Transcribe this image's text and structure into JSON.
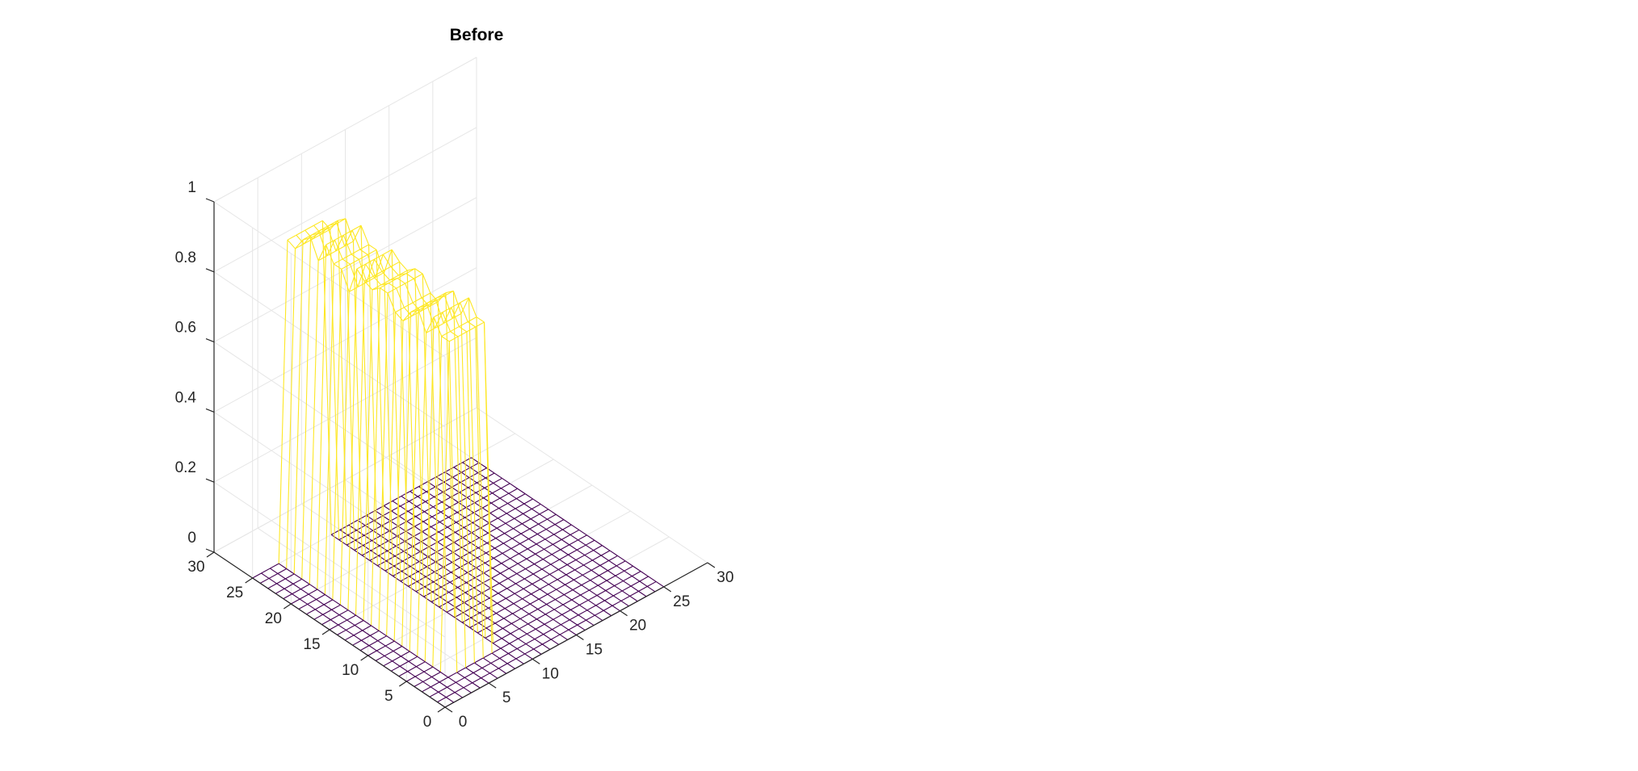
{
  "chart_data": {
    "type": "surface-mesh",
    "title": "Before",
    "xlabel": "",
    "ylabel": "",
    "zlabel": "",
    "xlim": [
      0,
      30
    ],
    "ylim": [
      0,
      30
    ],
    "zlim": [
      0,
      1
    ],
    "xticks": [
      "0",
      "5",
      "10",
      "15",
      "20",
      "25",
      "30"
    ],
    "yticks": [
      "0",
      "5",
      "10",
      "15",
      "20",
      "25",
      "30"
    ],
    "zticks": [
      "0",
      "0.2",
      "0.4",
      "0.6",
      "0.8",
      "1"
    ],
    "grid": true,
    "colormap": [
      "#440154",
      "#3b528b",
      "#21918c",
      "#5ec962",
      "#fde725"
    ],
    "grid_size": 26,
    "plateau": {
      "x_range": [
        4,
        8
      ],
      "y_range": [
        4,
        26
      ],
      "z_levels": [
        0.93,
        0.95,
        0.9,
        0.96,
        0.97,
        0.93,
        0.96
      ],
      "note": "raised block of height ~0.9-1.0 with ragged crest; base at 0"
    }
  }
}
